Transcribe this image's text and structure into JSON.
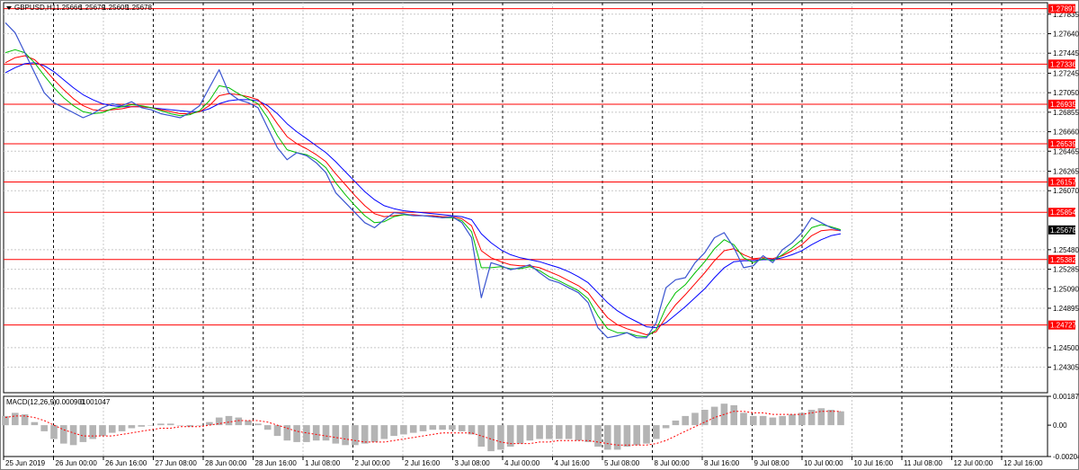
{
  "colors": {
    "price_line": "#3a54d0",
    "ma_green": "#00bf00",
    "ma_red": "#ff0000",
    "ma_blue": "#0000ff",
    "level_line": "#ff0000",
    "level_label_bg": "#ff0000",
    "current_label_bg": "#000000",
    "grid": "#c8c8c8",
    "macd_hist": "#b4b4b4",
    "macd_signal": "#ff0000"
  },
  "icons": {
    "dropdown": "triangle-down-icon"
  },
  "chart_data": [
    {
      "type": "line",
      "symbol": "GBPUSD,H1",
      "ohlc": [
        "1.25666",
        "1.25679",
        "1.25605",
        "1.25678"
      ],
      "ylim": [
        1.2405,
        1.2795
      ],
      "y_ticks": [
        "1.27835",
        "1.27640",
        "1.27445",
        "1.27245",
        "1.27050",
        "1.26855",
        "1.26660",
        "1.26465",
        "1.26265",
        "1.26070",
        "1.25480",
        "1.25285",
        "1.25090",
        "1.24895",
        "1.24500",
        "1.24305"
      ],
      "horizontal_levels": [
        "1.27891",
        "1.27336",
        "1.26935",
        "1.26539",
        "1.26157",
        "1.25854",
        "1.25382",
        "1.24727"
      ],
      "current_price": "1.25678",
      "x_ticks": [
        "25 Jun 2019",
        "26 Jun 00:00",
        "26 Jun 16:00",
        "27 Jun 08:00",
        "28 Jun 00:00",
        "28 Jun 16:00",
        "1 Jul 08:00",
        "2 Jul 00:00",
        "2 Jul 16:00",
        "3 Jul 08:00",
        "4 Jul 00:00",
        "4 Jul 16:00",
        "5 Jul 08:00",
        "8 Jul 00:00",
        "8 Jul 16:00",
        "9 Jul 08:00",
        "10 Jul 00:00",
        "10 Jul 16:00",
        "11 Jul 08:00",
        "12 Jul 00:00",
        "12 Jul 16:00"
      ],
      "x_ticks_dashed": [
        "26 Jun 00:00",
        "27 Jun 08:00",
        "28 Jun 00:00",
        "28 Jun 16:00",
        "2 Jul 00:00",
        "3 Jul 08:00",
        "4 Jul 00:00",
        "5 Jul 08:00",
        "8 Jul 00:00",
        "9 Jul 08:00",
        "10 Jul 00:00",
        "11 Jul 08:00",
        "12 Jul 00:00",
        "12 Jul 16:00"
      ],
      "close": [
        1.2775,
        1.2765,
        1.2745,
        1.2725,
        1.2705,
        1.2695,
        1.269,
        1.2685,
        1.268,
        1.2684,
        1.269,
        1.2694,
        1.2692,
        1.2696,
        1.269,
        1.2688,
        1.2684,
        1.2682,
        1.268,
        1.2685,
        1.2692,
        1.271,
        1.2728,
        1.2705,
        1.2698,
        1.2695,
        1.269,
        1.267,
        1.265,
        1.2638,
        1.2645,
        1.2642,
        1.2635,
        1.2625,
        1.2605,
        1.2595,
        1.2585,
        1.2575,
        1.257,
        1.2578,
        1.2585,
        1.2584,
        1.2582,
        1.2582,
        1.2581,
        1.258,
        1.2581,
        1.2575,
        1.256,
        1.25,
        1.2535,
        1.2532,
        1.2528,
        1.253,
        1.2533,
        1.2525,
        1.2518,
        1.2515,
        1.251,
        1.2505,
        1.2495,
        1.247,
        1.246,
        1.2462,
        1.2465,
        1.246,
        1.246,
        1.2475,
        1.251,
        1.2518,
        1.252,
        1.2535,
        1.2545,
        1.256,
        1.2565,
        1.255,
        1.253,
        1.2532,
        1.2542,
        1.2535,
        1.2548,
        1.2555,
        1.2565,
        1.258,
        1.2575,
        1.257,
        1.2567
      ],
      "ma_fast": [
        1.2745,
        1.2748,
        1.2745,
        1.2735,
        1.2722,
        1.271,
        1.27,
        1.2692,
        1.2686,
        1.2684,
        1.2685,
        1.2689,
        1.2691,
        1.2693,
        1.2692,
        1.269,
        1.2687,
        1.2684,
        1.2682,
        1.2683,
        1.2687,
        1.2697,
        1.2712,
        1.271,
        1.2704,
        1.2699,
        1.2694,
        1.268,
        1.2662,
        1.2648,
        1.2645,
        1.2643,
        1.2638,
        1.263,
        1.2615,
        1.2603,
        1.2592,
        1.2582,
        1.2575,
        1.2576,
        1.2581,
        1.2583,
        1.2582,
        1.2582,
        1.2581,
        1.258,
        1.258,
        1.2577,
        1.2566,
        1.253,
        1.253,
        1.2531,
        1.2529,
        1.2529,
        1.2531,
        1.2527,
        1.2521,
        1.2517,
        1.2512,
        1.2507,
        1.2499,
        1.2482,
        1.2469,
        1.2465,
        1.2465,
        1.2462,
        1.2461,
        1.2468,
        1.249,
        1.2505,
        1.2513,
        1.2525,
        1.2536,
        1.2549,
        1.2558,
        1.2553,
        1.254,
        1.2535,
        1.2539,
        1.2537,
        1.2543,
        1.255,
        1.2558,
        1.257,
        1.2573,
        1.2571,
        1.2568
      ],
      "ma_mid": [
        1.2735,
        1.274,
        1.2742,
        1.2738,
        1.2729,
        1.2718,
        1.2708,
        1.2699,
        1.2692,
        1.2688,
        1.2687,
        1.2688,
        1.2689,
        1.2691,
        1.2691,
        1.269,
        1.2688,
        1.2686,
        1.2684,
        1.2684,
        1.2686,
        1.2692,
        1.2702,
        1.2704,
        1.2703,
        1.2701,
        1.2698,
        1.2688,
        1.2674,
        1.2661,
        1.2654,
        1.2649,
        1.2643,
        1.2636,
        1.2624,
        1.2613,
        1.2602,
        1.2592,
        1.2584,
        1.2581,
        1.2582,
        1.2583,
        1.2583,
        1.2582,
        1.2582,
        1.2581,
        1.2581,
        1.2579,
        1.2572,
        1.2547,
        1.254,
        1.2536,
        1.2533,
        1.2532,
        1.2532,
        1.253,
        1.2526,
        1.2522,
        1.2517,
        1.2512,
        1.2505,
        1.2492,
        1.248,
        1.2473,
        1.2469,
        1.2466,
        1.2463,
        1.2466,
        1.248,
        1.2493,
        1.2503,
        1.2514,
        1.2525,
        1.2537,
        1.2547,
        1.2549,
        1.2543,
        1.2539,
        1.254,
        1.2539,
        1.2542,
        1.2547,
        1.2553,
        1.2562,
        1.2567,
        1.2568,
        1.2567
      ],
      "ma_slow": [
        1.2725,
        1.273,
        1.2734,
        1.2735,
        1.2732,
        1.2726,
        1.2718,
        1.271,
        1.2703,
        1.2698,
        1.2694,
        1.2692,
        1.2691,
        1.2691,
        1.2691,
        1.269,
        1.2689,
        1.2688,
        1.2687,
        1.2686,
        1.2686,
        1.2689,
        1.2694,
        1.2697,
        1.2698,
        1.2698,
        1.2697,
        1.2692,
        1.2684,
        1.2674,
        1.2666,
        1.2659,
        1.2652,
        1.2645,
        1.2636,
        1.2626,
        1.2616,
        1.2606,
        1.2598,
        1.2592,
        1.2589,
        1.2587,
        1.2586,
        1.2585,
        1.2584,
        1.2583,
        1.2582,
        1.2581,
        1.2578,
        1.2564,
        1.2555,
        1.2548,
        1.2543,
        1.254,
        1.2538,
        1.2536,
        1.2533,
        1.253,
        1.2526,
        1.2521,
        1.2515,
        1.2505,
        1.2495,
        1.2487,
        1.2481,
        1.2476,
        1.2471,
        1.247,
        1.2475,
        1.2483,
        1.2491,
        1.25,
        1.2509,
        1.252,
        1.253,
        1.2536,
        1.2537,
        1.2537,
        1.2538,
        1.2538,
        1.254,
        1.2543,
        1.2547,
        1.2553,
        1.2558,
        1.2562,
        1.2564
      ]
    },
    {
      "type": "bar",
      "indicator": "MACD(12,26,9)",
      "values_readout": [
        "0.000901",
        "0.001047"
      ],
      "ylim": [
        -0.002042,
        0.001879
      ],
      "y_ticks": [
        "0.001879",
        "0.00",
        "-0.002042"
      ],
      "histogram": [
        0.0006,
        0.0008,
        0.0007,
        0.0002,
        -0.0004,
        -0.0009,
        -0.0012,
        -0.0013,
        -0.0011,
        -0.0009,
        -0.0007,
        -0.0005,
        -0.0004,
        -0.0002,
        -0.0001,
        0.0,
        0.0001,
        0.0001,
        0.0,
        -0.0001,
        0.0,
        0.0002,
        0.0005,
        0.0006,
        0.0005,
        0.0003,
        0.0001,
        -0.0003,
        -0.0007,
        -0.001,
        -0.0011,
        -0.0011,
        -0.001,
        -0.001,
        -0.0012,
        -0.0013,
        -0.0013,
        -0.0012,
        -0.0011,
        -0.0009,
        -0.0007,
        -0.0006,
        -0.0005,
        -0.0004,
        -0.0003,
        -0.0003,
        -0.0003,
        -0.0004,
        -0.0006,
        -0.0014,
        -0.0017,
        -0.0016,
        -0.0014,
        -0.0012,
        -0.001,
        -0.0009,
        -0.0009,
        -0.0009,
        -0.0009,
        -0.001,
        -0.0011,
        -0.0014,
        -0.0016,
        -0.0016,
        -0.0014,
        -0.0013,
        -0.0012,
        -0.0009,
        -0.0002,
        0.0003,
        0.0006,
        0.0008,
        0.001,
        0.0012,
        0.0014,
        0.0013,
        0.0008,
        0.0006,
        0.0006,
        0.0005,
        0.0006,
        0.0007,
        0.0008,
        0.001,
        0.0011,
        0.001,
        0.0009
      ],
      "signal": [
        0.0005,
        0.0006,
        0.0006,
        0.0005,
        0.0003,
        0.0,
        -0.0003,
        -0.0005,
        -0.0007,
        -0.0007,
        -0.0007,
        -0.0007,
        -0.0006,
        -0.0005,
        -0.0004,
        -0.0003,
        -0.0002,
        -0.0002,
        -0.0001,
        -0.0001,
        -0.0001,
        0.0,
        0.0001,
        0.0002,
        0.0003,
        0.0003,
        0.0003,
        0.0002,
        0.0,
        -0.0002,
        -0.0004,
        -0.0005,
        -0.0006,
        -0.0007,
        -0.0008,
        -0.0009,
        -0.001,
        -0.0011,
        -0.0011,
        -0.0011,
        -0.001,
        -0.0009,
        -0.0008,
        -0.0007,
        -0.0006,
        -0.0005,
        -0.0005,
        -0.0005,
        -0.0005,
        -0.0007,
        -0.0009,
        -0.0011,
        -0.0012,
        -0.0012,
        -0.0012,
        -0.0011,
        -0.0011,
        -0.001,
        -0.001,
        -0.001,
        -0.001,
        -0.0011,
        -0.0012,
        -0.0013,
        -0.0013,
        -0.0013,
        -0.0013,
        -0.0012,
        -0.001,
        -0.0007,
        -0.0004,
        -0.0001,
        0.0002,
        0.0005,
        0.0007,
        0.0009,
        0.0009,
        0.0008,
        0.0008,
        0.0007,
        0.0007,
        0.0007,
        0.0007,
        0.0008,
        0.0009,
        0.0009,
        0.0009
      ]
    }
  ]
}
